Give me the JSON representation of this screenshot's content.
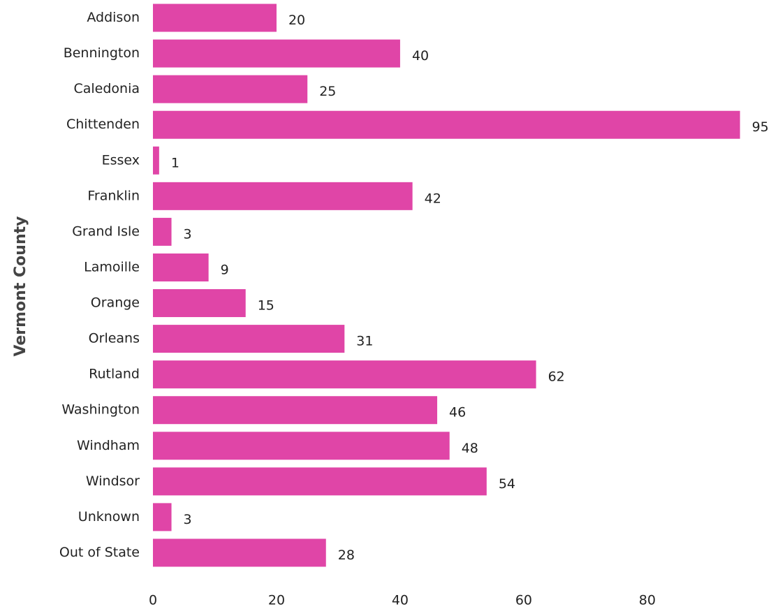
{
  "chart_data": {
    "type": "bar",
    "orientation": "horizontal",
    "y_label": "Vermont County",
    "categories": [
      "Addison",
      "Bennington",
      "Caledonia",
      "Chittenden",
      "Essex",
      "Franklin",
      "Grand Isle",
      "Lamoille",
      "Orange",
      "Orleans",
      "Rutland",
      "Washington",
      "Windham",
      "Windsor",
      "Unknown",
      "Out of State"
    ],
    "values": [
      20,
      40,
      25,
      95,
      1,
      42,
      3,
      9,
      15,
      31,
      62,
      46,
      48,
      54,
      3,
      28
    ],
    "color": "#e045a7",
    "xlim": [
      0,
      99
    ],
    "xticks": [
      0,
      20,
      40,
      60,
      80
    ],
    "grid": false
  }
}
